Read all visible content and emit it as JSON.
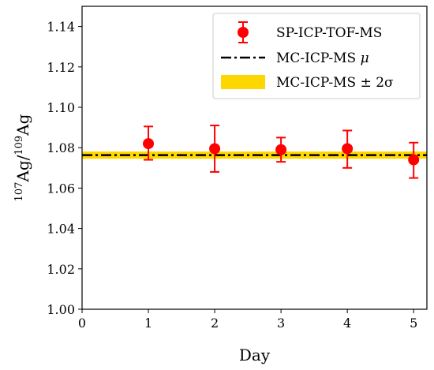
{
  "chart_data": {
    "type": "scatter",
    "title": "",
    "xlabel": "Day",
    "ylabel": {
      "prefix_sup": "107",
      "mid": "Ag/",
      "mid_sup": "109",
      "suffix": "Ag"
    },
    "xlim": [
      0,
      5.2
    ],
    "ylim": [
      1.0,
      1.15
    ],
    "xticks": [
      "0",
      "1",
      "2",
      "3",
      "4",
      "5"
    ],
    "yticks": [
      "1.00",
      "1.02",
      "1.04",
      "1.06",
      "1.08",
      "1.10",
      "1.12",
      "1.14"
    ],
    "grid": false,
    "legend_position": "top-right",
    "series": [
      {
        "name": "SP-ICP-TOF-MS",
        "kind": "errorbar",
        "color": "#ff0000",
        "x": [
          1,
          2,
          3,
          4,
          5
        ],
        "y": [
          1.082,
          1.0795,
          1.079,
          1.0795,
          1.074
        ],
        "err_low": [
          1.074,
          1.068,
          1.073,
          1.07,
          1.065
        ],
        "err_high": [
          1.0905,
          1.091,
          1.085,
          1.0885,
          1.0825
        ]
      },
      {
        "name": "MC-ICP-MS",
        "name_suffix": "μ",
        "kind": "hline",
        "color": "#000000",
        "style": "dashdot",
        "y": 1.0763
      },
      {
        "name": "MC-ICP-MS ± 2σ",
        "kind": "band",
        "color": "#ffd700",
        "y_low": 1.0745,
        "y_high": 1.0781
      }
    ]
  }
}
